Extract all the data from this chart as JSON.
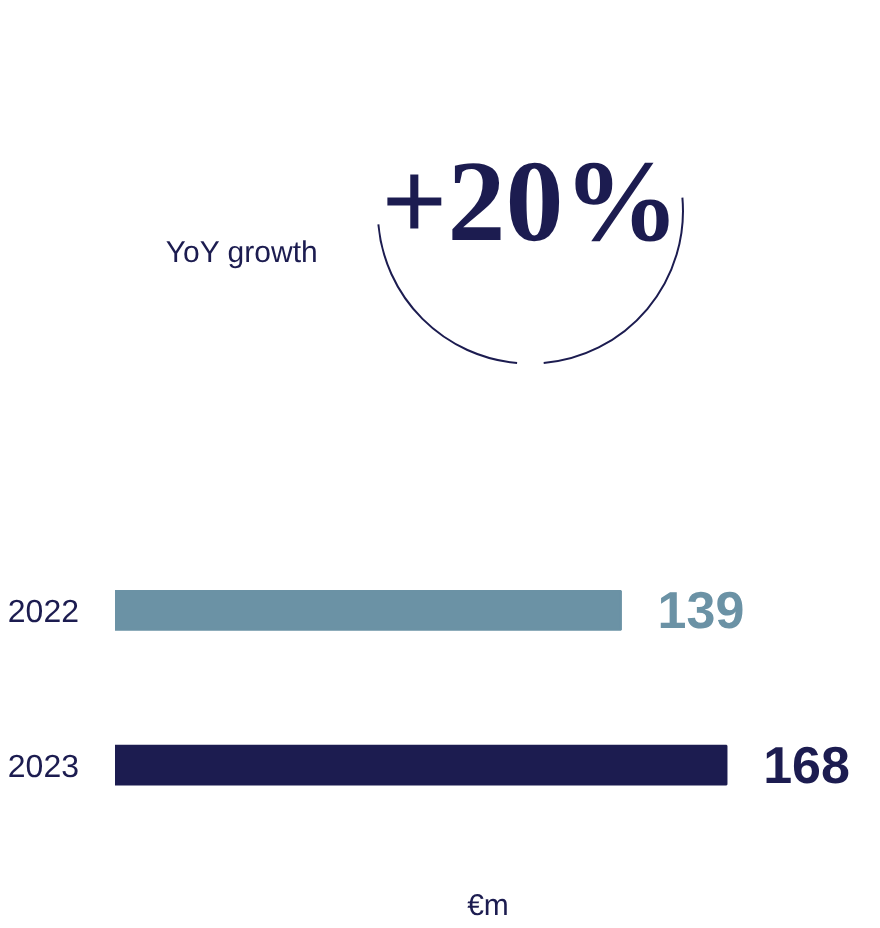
{
  "chart_data": {
    "type": "bar",
    "orientation": "horizontal",
    "title": "YoY growth",
    "annotations": [
      "+20%"
    ],
    "categories": [
      "2022",
      "2023"
    ],
    "values": [
      139,
      168
    ],
    "colors": [
      "#6b92a5",
      "#1c1c50"
    ],
    "xlabel": "€m",
    "data_labels": true
  }
}
